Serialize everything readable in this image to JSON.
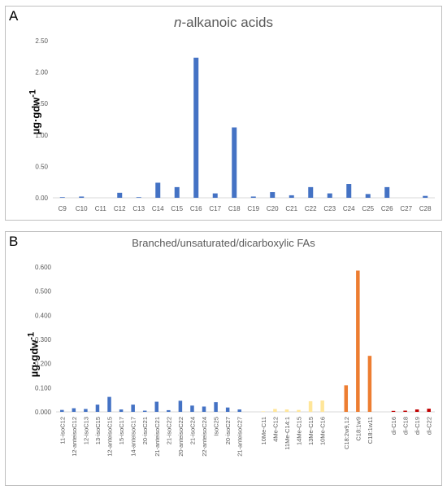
{
  "figure": {
    "panel_a_letter": "A",
    "panel_b_letter": "B"
  },
  "chart_data": [
    {
      "type": "bar",
      "title_prefix": "n",
      "title": "-alkanoic acids",
      "ylabel": "µg·gdw",
      "ylabel_sup": "-1",
      "ylim": [
        0,
        2.5
      ],
      "yticks": [
        "0.00",
        "0.50",
        "1.00",
        "1.50",
        "2.00",
        "2.50"
      ],
      "grid": false,
      "color": "#4472c4",
      "categories": [
        "C9",
        "C10",
        "C11",
        "C12",
        "C13",
        "C14",
        "C15",
        "C16",
        "C17",
        "C18",
        "C19",
        "C20",
        "C21",
        "C22",
        "C23",
        "C24",
        "C25",
        "C26",
        "C27",
        "C28"
      ],
      "values": [
        0.01,
        0.02,
        0.0,
        0.08,
        0.01,
        0.24,
        0.17,
        2.23,
        0.07,
        1.12,
        0.02,
        0.09,
        0.04,
        0.17,
        0.07,
        0.22,
        0.06,
        0.17,
        0.0,
        0.03
      ]
    },
    {
      "type": "bar",
      "title": "Branched/unsaturated/dicarboxylic FAs",
      "ylabel": "µg·gdw",
      "ylabel_sup": "-1",
      "ylim": [
        0,
        0.6
      ],
      "yticks": [
        "0.000",
        "0.100",
        "0.200",
        "0.300",
        "0.400",
        "0.500",
        "0.600"
      ],
      "grid": false,
      "groups": [
        {
          "color": "#4472c4",
          "categories": [
            "11-isoC12",
            "12-anteisoC12",
            "12-isoC13",
            "13-isoC15",
            "12-anteisoC15",
            "15-isoC17",
            "14-anteisoC17",
            "20-isoC21",
            "21-anteisoC21",
            "21-isoC22",
            "20-anteisoC22",
            "21-isoC24",
            "22-anteisoC24",
            "IsoC25",
            "20-isoC27",
            "21-anteisoC27"
          ],
          "values": [
            0.008,
            0.015,
            0.012,
            0.03,
            0.062,
            0.01,
            0.03,
            0.005,
            0.042,
            0.007,
            0.046,
            0.026,
            0.022,
            0.04,
            0.018,
            0.01
          ]
        },
        {
          "color": "#ffe699",
          "categories": [
            "10Me-C11",
            "4Me-C12",
            "11Me-C14:1",
            "14Me-C15",
            "13Me-C15",
            "10Me-C16"
          ],
          "values": [
            0.002,
            0.012,
            0.01,
            0.008,
            0.044,
            0.047
          ]
        },
        {
          "color": "#ed7d31",
          "categories": [
            "C18:2w9,12",
            "C18:1w9",
            "C18:1w11"
          ],
          "values": [
            0.11,
            0.585,
            0.232
          ]
        },
        {
          "color": "#c00000",
          "categories": [
            "di-C16",
            "di-C18",
            "di-C19",
            "di-C22"
          ],
          "values": [
            0.004,
            0.005,
            0.01,
            0.013
          ]
        }
      ]
    }
  ]
}
